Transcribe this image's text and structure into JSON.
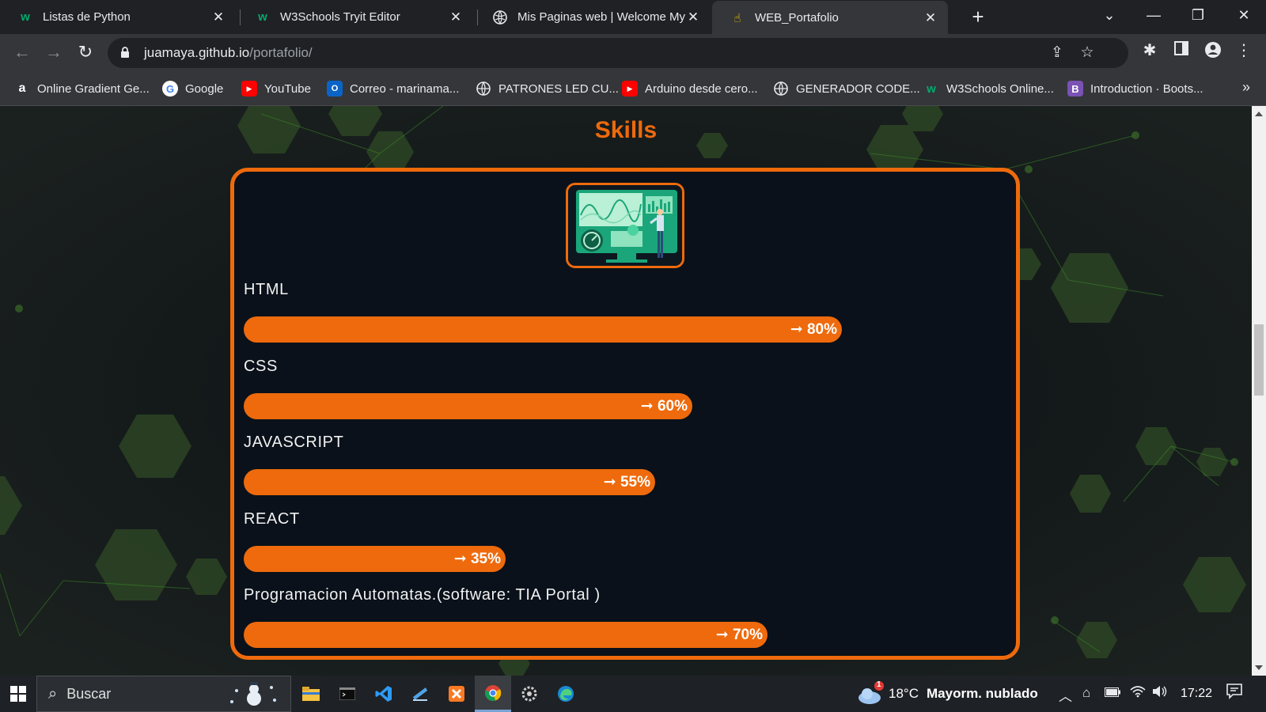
{
  "browser": {
    "tabs": [
      {
        "title": "Listas de Python",
        "favicon": "w3schools-icon",
        "active": false
      },
      {
        "title": "W3Schools Tryit Editor",
        "favicon": "w3schools-icon",
        "active": false
      },
      {
        "title": "Mis Paginas web | Welcome My",
        "favicon": "globe-icon",
        "active": false
      },
      {
        "title": "WEB_Portafolio",
        "favicon": "hand-icon",
        "active": true
      }
    ],
    "new_tab_icon": "plus-icon",
    "address": {
      "host": "juamaya.github.io",
      "path": "/portafolio/"
    },
    "bookmarks": [
      {
        "label": "Online Gradient Ge...",
        "icon": "a-letter-icon"
      },
      {
        "label": "Google",
        "icon": "google-icon"
      },
      {
        "label": "YouTube",
        "icon": "youtube-icon"
      },
      {
        "label": "Correo - marinama...",
        "icon": "outlook-icon"
      },
      {
        "label": "PATRONES LED CU...",
        "icon": "globe-icon"
      },
      {
        "label": "Arduino desde cero...",
        "icon": "youtube-icon"
      },
      {
        "label": "GENERADOR CODE...",
        "icon": "globe-icon"
      },
      {
        "label": "W3Schools Online...",
        "icon": "w3schools-icon"
      },
      {
        "label": "Introduction · Boots...",
        "icon": "bootstrap-icon"
      }
    ]
  },
  "page": {
    "section_title": "Skills",
    "skills": [
      {
        "name": "HTML",
        "percent_label": "➞ 80%",
        "level": 0.8
      },
      {
        "name": "CSS",
        "percent_label": "➞ 60%",
        "level": 0.6
      },
      {
        "name": "JAVASCRIPT",
        "percent_label": "➞ 55%",
        "level": 0.55
      },
      {
        "name": "REACT",
        "percent_label": "➞ 35%",
        "level": 0.35
      },
      {
        "name": "Programacion Automatas.(software: TIA Portal )",
        "percent_label": "➞ 70%",
        "level": 0.7
      }
    ],
    "accent_color": "#ee6a0c"
  },
  "taskbar": {
    "search_placeholder": "Buscar",
    "weather": {
      "temp": "18°C",
      "condition": "Mayorm. nublado",
      "badge": "1"
    },
    "clock": "17:22"
  }
}
